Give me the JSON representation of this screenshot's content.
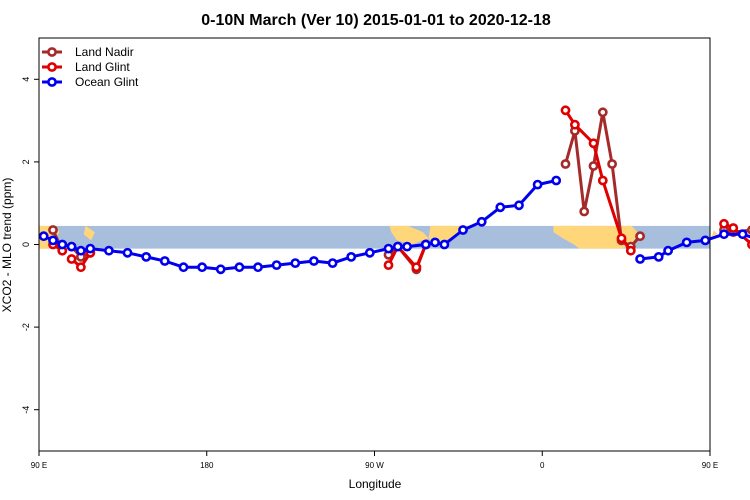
{
  "chart_data": {
    "type": "line",
    "title": "0-10N March (Ver 10)   2015-01-01 to 2020-12-18",
    "xlabel": "Longitude",
    "ylabel": "XCO2 - MLO trend (ppm)",
    "xlim": [
      0,
      360
    ],
    "ylim": [
      -5,
      5
    ],
    "x_ticks": [
      {
        "value": 0,
        "label": "90 E"
      },
      {
        "value": 90,
        "label": "180"
      },
      {
        "value": 180,
        "label": "90 W"
      },
      {
        "value": 270,
        "label": "0"
      },
      {
        "value": 360,
        "label": "90 E"
      },
      {
        "value": 450,
        "label": "180"
      }
    ],
    "y_ticks": [
      {
        "value": -4,
        "label": "-4"
      },
      {
        "value": -2,
        "label": "-2"
      },
      {
        "value": 0,
        "label": "0"
      },
      {
        "value": 2,
        "label": "2"
      },
      {
        "value": 4,
        "label": "4"
      }
    ],
    "legend_position": "top-left",
    "background_band": {
      "ymin": -0.1,
      "ymax": 0.45,
      "ocean_color": "#A7BEDC",
      "land_color": "#FFD67A"
    },
    "series": [
      {
        "name": "Land Nadir",
        "color": "#A52A2A",
        "segments": [
          {
            "x": [
              7.5,
              12.5
            ],
            "y": [
              0.35,
              -0.15
            ]
          },
          {
            "x": [
              17.5,
              22.5,
              27.5
            ],
            "y": [
              -0.05,
              -0.3,
              -0.2
            ]
          },
          {
            "x": [
              187.5,
              192.5,
              202.5,
              207.5
            ],
            "y": [
              -0.25,
              -0.05,
              -0.6,
              0.0
            ]
          },
          {
            "x": [
              282.5,
              287.5,
              292.5,
              297.5,
              302.5,
              307.5,
              312.5,
              317.5,
              322.5
            ],
            "y": [
              1.95,
              2.75,
              0.8,
              1.9,
              3.2,
              1.95,
              0.1,
              -0.05,
              0.2
            ]
          },
          {
            "x": [
              367.5,
              372.5,
              382.5,
              387.5,
              397.5
            ],
            "y": [
              0.35,
              0.3,
              0.35,
              -0.15,
              -0.25
            ]
          }
        ]
      },
      {
        "name": "Land Glint",
        "color": "#E00000",
        "segments": [
          {
            "x": [
              7.5,
              12.5
            ],
            "y": [
              0.0,
              -0.15
            ]
          },
          {
            "x": [
              17.5,
              22.5,
              27.5
            ],
            "y": [
              -0.35,
              -0.55,
              -0.2
            ]
          },
          {
            "x": [
              187.5,
              192.5,
              202.5,
              207.5
            ],
            "y": [
              -0.5,
              -0.05,
              -0.55,
              0.0
            ]
          },
          {
            "x": [
              282.5,
              287.5,
              297.5,
              302.5,
              312.5,
              317.5
            ],
            "y": [
              3.25,
              2.9,
              2.45,
              1.55,
              0.15,
              -0.15
            ]
          },
          {
            "x": [
              367.5,
              372.5,
              382.5,
              387.5,
              397.5,
              402.5
            ],
            "y": [
              0.5,
              0.4,
              0.0,
              -0.1,
              -0.55,
              -0.25
            ]
          }
        ]
      },
      {
        "name": "Ocean Glint",
        "color": "#0000EE",
        "segments": [
          {
            "x": [
              2.5,
              7.5,
              12.5,
              17.5,
              22.5,
              27.5,
              37.5,
              47.5,
              57.5,
              67.5,
              77.5,
              87.5,
              97.5,
              107.5,
              117.5,
              127.5,
              137.5,
              147.5,
              157.5,
              167.5,
              177.5,
              187.5,
              192.5,
              197.5,
              207.5,
              212.5,
              217.5,
              227.5,
              237.5,
              247.5,
              257.5,
              267.5,
              277.5
            ],
            "y": [
              0.2,
              0.1,
              0.0,
              -0.05,
              -0.15,
              -0.1,
              -0.15,
              -0.2,
              -0.3,
              -0.4,
              -0.55,
              -0.55,
              -0.6,
              -0.55,
              -0.55,
              -0.5,
              -0.45,
              -0.4,
              -0.45,
              -0.3,
              -0.2,
              -0.1,
              -0.05,
              -0.05,
              0.0,
              0.05,
              0.0,
              0.35,
              0.55,
              0.9,
              0.95,
              1.45,
              1.55
            ]
          },
          {
            "x": [
              322.5,
              332.5,
              337.5,
              347.5,
              357.5,
              367.5,
              377.5,
              387.5,
              397.5,
              407.5,
              417.5,
              427.5,
              437.5,
              447.5,
              457.5
            ],
            "y": [
              -0.35,
              -0.3,
              -0.15,
              0.05,
              0.1,
              0.25,
              0.25,
              0.1,
              -0.1,
              -0.1,
              -0.1,
              -0.15,
              -0.2,
              -0.4,
              -0.6
            ]
          }
        ]
      }
    ]
  }
}
